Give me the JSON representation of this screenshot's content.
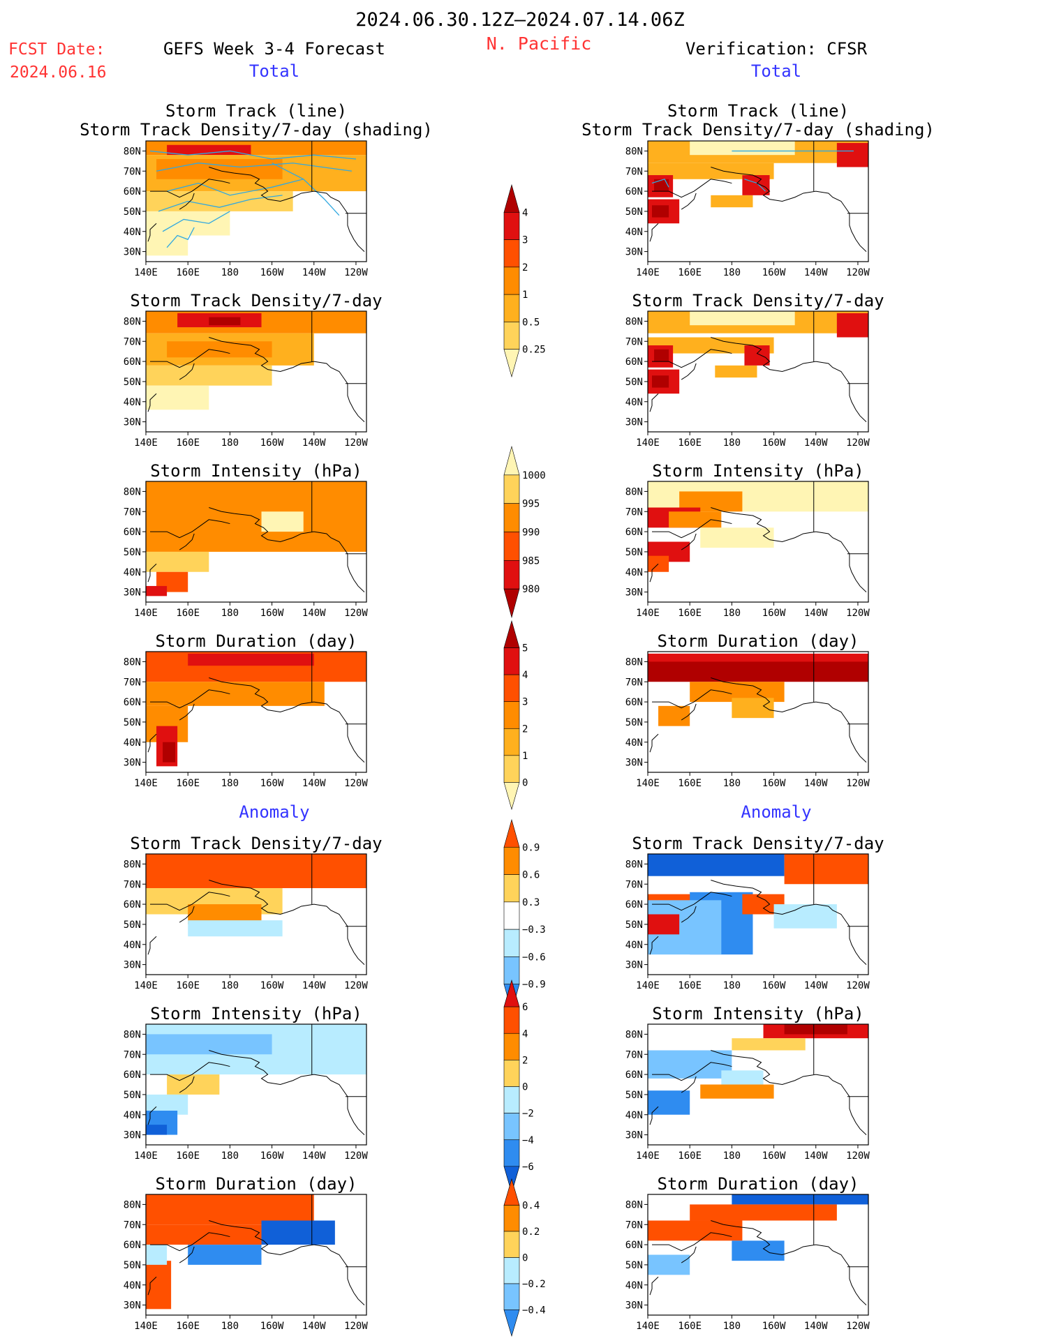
{
  "header": {
    "period": "2024.06.30.12Z–2024.07.14.06Z",
    "region": "N. Pacific",
    "fcst_label": "FCST Date:",
    "fcst_date": "2024.06.16",
    "left_title": "GEFS Week 3-4 Forecast",
    "right_title": "Verification: CFSR",
    "total_label": "Total",
    "anomaly_label": "Anomaly"
  },
  "panel_titles": {
    "track_line": "Storm Track (line)",
    "track_shade": "Storm Track Density/7-day (shading)",
    "density": "Storm Track Density/7-day",
    "intensity": "Storm Intensity (hPa)",
    "duration": "Storm Duration (day)"
  },
  "colors": {
    "yellow_light": "#fff5b4",
    "yellow": "#ffd35a",
    "orange_light": "#ffb01e",
    "orange": "#ff8c00",
    "red_orange": "#ff5000",
    "red": "#e01010",
    "dark_red": "#b00000",
    "blue_light": "#b8ecff",
    "blue_mid": "#78c4ff",
    "blue": "#2f8cf0",
    "blue_dark": "#1060d8",
    "track_line": "#30a8e0"
  },
  "chart_data": [
    {
      "type": "heatmap",
      "id": "fc_track",
      "title": "Storm Track (line)",
      "subtitle": "Storm Track Density/7-day (shading)",
      "x_ticks": [
        "140E",
        "160E",
        "180",
        "160W",
        "140W",
        "120W"
      ],
      "y_ticks": [
        "80N",
        "70N",
        "60N",
        "50N",
        "40N",
        "30N"
      ],
      "xlim": [
        140,
        245
      ],
      "ylim": [
        25,
        85
      ]
    },
    {
      "type": "heatmap",
      "id": "vf_track",
      "title": "Storm Track (line)",
      "subtitle": "Storm Track Density/7-day (shading)",
      "x_ticks": [
        "140E",
        "160E",
        "180",
        "160W",
        "140W",
        "120W"
      ],
      "y_ticks": [
        "80N",
        "70N",
        "60N",
        "50N",
        "40N",
        "30N"
      ],
      "xlim": [
        140,
        245
      ],
      "ylim": [
        25,
        85
      ]
    },
    {
      "type": "heatmap",
      "id": "fc_density",
      "title": "Storm Track Density/7-day",
      "x_ticks": [
        "140E",
        "160E",
        "180",
        "160W",
        "140W",
        "120W"
      ],
      "y_ticks": [
        "80N",
        "70N",
        "60N",
        "50N",
        "40N",
        "30N"
      ],
      "xlim": [
        140,
        245
      ],
      "ylim": [
        25,
        85
      ]
    },
    {
      "type": "heatmap",
      "id": "vf_density",
      "title": "Storm Track Density/7-day",
      "x_ticks": [
        "140E",
        "160E",
        "180",
        "160W",
        "140W",
        "120W"
      ],
      "y_ticks": [
        "80N",
        "70N",
        "60N",
        "50N",
        "40N",
        "30N"
      ],
      "xlim": [
        140,
        245
      ],
      "ylim": [
        25,
        85
      ]
    },
    {
      "type": "heatmap",
      "id": "fc_intensity",
      "title": "Storm Intensity (hPa)",
      "x_ticks": [
        "140E",
        "160E",
        "180",
        "160W",
        "140W",
        "120W"
      ],
      "y_ticks": [
        "80N",
        "70N",
        "60N",
        "50N",
        "40N",
        "30N"
      ],
      "xlim": [
        140,
        245
      ],
      "ylim": [
        25,
        85
      ]
    },
    {
      "type": "heatmap",
      "id": "vf_intensity",
      "title": "Storm Intensity (hPa)",
      "x_ticks": [
        "140E",
        "160E",
        "180",
        "160W",
        "140W",
        "120W"
      ],
      "y_ticks": [
        "80N",
        "70N",
        "60N",
        "50N",
        "40N",
        "30N"
      ],
      "xlim": [
        140,
        245
      ],
      "ylim": [
        25,
        85
      ]
    },
    {
      "type": "heatmap",
      "id": "fc_duration",
      "title": "Storm Duration (day)",
      "x_ticks": [
        "140E",
        "160E",
        "180",
        "160W",
        "140W",
        "120W"
      ],
      "y_ticks": [
        "80N",
        "70N",
        "60N",
        "50N",
        "40N",
        "30N"
      ],
      "xlim": [
        140,
        245
      ],
      "ylim": [
        25,
        85
      ]
    },
    {
      "type": "heatmap",
      "id": "vf_duration",
      "title": "Storm Duration (day)",
      "x_ticks": [
        "140E",
        "160E",
        "180",
        "160W",
        "140W",
        "120W"
      ],
      "y_ticks": [
        "80N",
        "70N",
        "60N",
        "50N",
        "40N",
        "30N"
      ],
      "xlim": [
        140,
        245
      ],
      "ylim": [
        25,
        85
      ]
    },
    {
      "type": "heatmap",
      "id": "fc_density_anom",
      "title": "Storm Track Density/7-day",
      "x_ticks": [
        "140E",
        "160E",
        "180",
        "160W",
        "140W",
        "120W"
      ],
      "y_ticks": [
        "80N",
        "70N",
        "60N",
        "50N",
        "40N",
        "30N"
      ],
      "xlim": [
        140,
        245
      ],
      "ylim": [
        25,
        85
      ]
    },
    {
      "type": "heatmap",
      "id": "vf_density_anom",
      "title": "Storm Track Density/7-day",
      "x_ticks": [
        "140E",
        "160E",
        "180",
        "160W",
        "140W",
        "120W"
      ],
      "y_ticks": [
        "80N",
        "70N",
        "60N",
        "50N",
        "40N",
        "30N"
      ],
      "xlim": [
        140,
        245
      ],
      "ylim": [
        25,
        85
      ]
    },
    {
      "type": "heatmap",
      "id": "fc_intensity_anom",
      "title": "Storm Intensity (hPa)",
      "x_ticks": [
        "140E",
        "160E",
        "180",
        "160W",
        "140W",
        "120W"
      ],
      "y_ticks": [
        "80N",
        "70N",
        "60N",
        "50N",
        "40N",
        "30N"
      ],
      "xlim": [
        140,
        245
      ],
      "ylim": [
        25,
        85
      ]
    },
    {
      "type": "heatmap",
      "id": "vf_intensity_anom",
      "title": "Storm Intensity (hPa)",
      "x_ticks": [
        "140E",
        "160E",
        "180",
        "160W",
        "140W",
        "120W"
      ],
      "y_ticks": [
        "80N",
        "70N",
        "60N",
        "50N",
        "40N",
        "30N"
      ],
      "xlim": [
        140,
        245
      ],
      "ylim": [
        25,
        85
      ]
    },
    {
      "type": "heatmap",
      "id": "fc_duration_anom",
      "title": "Storm Duration (day)",
      "x_ticks": [
        "140E",
        "160E",
        "180",
        "160W",
        "140W",
        "120W"
      ],
      "y_ticks": [
        "80N",
        "70N",
        "60N",
        "50N",
        "40N",
        "30N"
      ],
      "xlim": [
        140,
        245
      ],
      "ylim": [
        25,
        85
      ]
    },
    {
      "type": "heatmap",
      "id": "vf_duration_anom",
      "title": "Storm Duration (day)",
      "x_ticks": [
        "140E",
        "160E",
        "180",
        "160W",
        "140W",
        "120W"
      ],
      "y_ticks": [
        "80N",
        "70N",
        "60N",
        "50N",
        "40N",
        "30N"
      ],
      "xlim": [
        140,
        245
      ],
      "ylim": [
        25,
        85
      ]
    }
  ],
  "colorbars": [
    {
      "id": "density",
      "labels": [
        "4",
        "3",
        "2",
        "1",
        "0.5",
        "0.25"
      ],
      "colors": [
        "#b00000",
        "#e01010",
        "#ff5000",
        "#ff8c00",
        "#ffb01e",
        "#ffd35a",
        "#fff5b4"
      ]
    },
    {
      "id": "intensity",
      "labels": [
        "1000",
        "995",
        "990",
        "985",
        "980"
      ],
      "colors": [
        "#fff5b4",
        "#ffd35a",
        "#ff8c00",
        "#ff5000",
        "#e01010",
        "#b00000"
      ]
    },
    {
      "id": "duration",
      "labels": [
        "5",
        "4",
        "3",
        "2",
        "1",
        "0"
      ],
      "colors": [
        "#b00000",
        "#e01010",
        "#ff5000",
        "#ff8c00",
        "#ffb01e",
        "#ffd35a",
        "#fff5b4"
      ]
    },
    {
      "id": "density_anom",
      "labels": [
        "0.9",
        "0.6",
        "0.3",
        "−0.3",
        "−0.6",
        "−0.9"
      ],
      "colors": [
        "#ff5000",
        "#ff8c00",
        "#ffd35a",
        "#ffffff",
        "#b8ecff",
        "#78c4ff",
        "#2f8cf0"
      ]
    },
    {
      "id": "intensity_anom",
      "labels": [
        "6",
        "4",
        "2",
        "0",
        "−2",
        "−4",
        "−6"
      ],
      "colors": [
        "#e01010",
        "#ff5000",
        "#ff8c00",
        "#ffd35a",
        "#b8ecff",
        "#78c4ff",
        "#2f8cf0",
        "#1060d8"
      ]
    },
    {
      "id": "duration_anom",
      "labels": [
        "0.4",
        "0.2",
        "0",
        "−0.2",
        "−0.4"
      ],
      "colors": [
        "#ff5000",
        "#ff8c00",
        "#ffd35a",
        "#b8ecff",
        "#78c4ff",
        "#2f8cf0"
      ]
    }
  ]
}
